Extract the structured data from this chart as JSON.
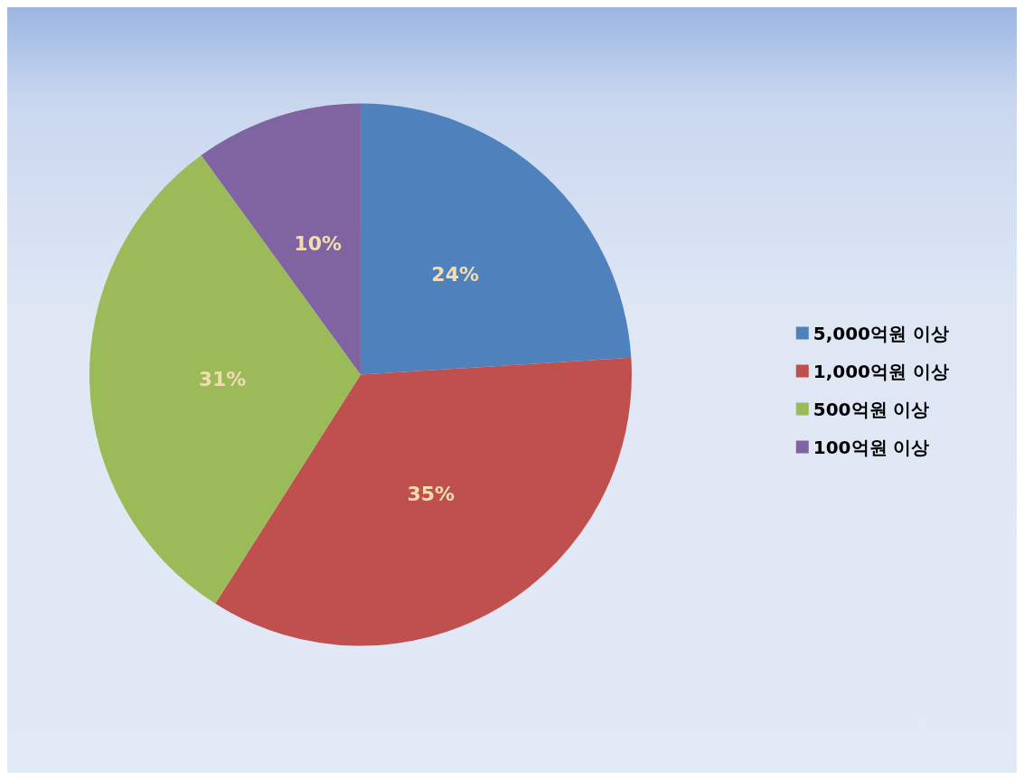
{
  "chart_data": {
    "type": "pie",
    "categories": [
      "5,000억원 이상",
      "1,000억원 이상",
      "500억원 이상",
      "100억원 이상"
    ],
    "values": [
      24,
      35,
      31,
      10
    ],
    "value_labels": [
      "24%",
      "35%",
      "31%",
      "10%"
    ],
    "colors": [
      "#4f81bd",
      "#c0504d",
      "#9bbb59",
      "#8064a2"
    ],
    "legend": "right"
  }
}
